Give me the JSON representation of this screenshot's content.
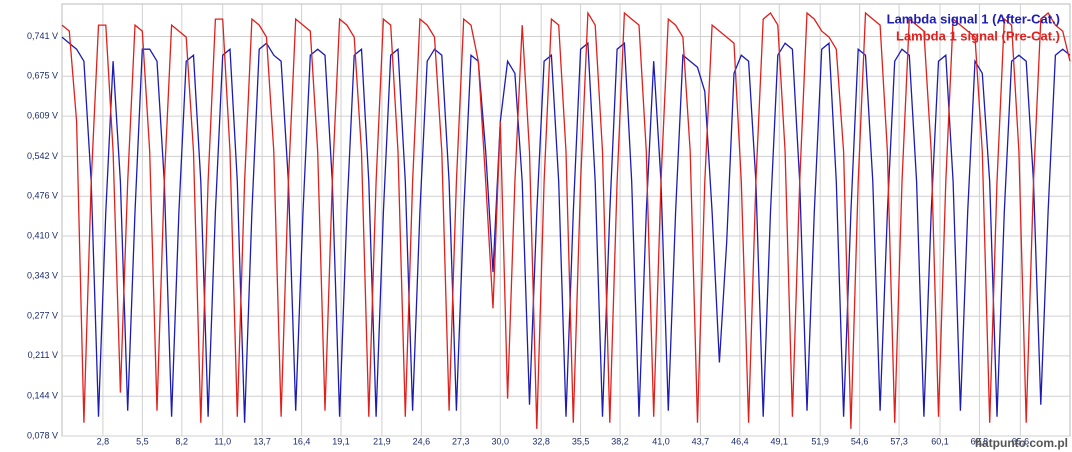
{
  "chart_data": {
    "type": "line",
    "watermark": "fiatpunto.com.pl",
    "x": [
      0,
      0.5,
      1,
      1.5,
      2,
      2.5,
      3,
      3.5,
      4,
      4.5,
      5,
      5.5,
      6,
      6.5,
      7,
      7.5,
      8,
      8.5,
      9,
      9.5,
      10,
      10.5,
      11,
      11.5,
      12,
      12.5,
      13,
      13.5,
      14,
      14.5,
      15,
      15.5,
      16,
      16.5,
      17,
      17.5,
      18,
      18.5,
      19,
      19.5,
      20,
      20.5,
      21,
      21.5,
      22,
      22.5,
      23,
      23.5,
      24,
      24.5,
      25,
      25.5,
      26,
      26.5,
      27,
      27.5,
      28,
      28.5,
      29,
      29.5,
      30,
      30.5,
      31,
      31.5,
      32,
      32.5,
      33,
      33.5,
      34,
      34.5,
      35,
      35.5,
      36,
      36.5,
      37,
      37.5,
      38,
      38.5,
      39,
      39.5,
      40,
      40.5,
      41,
      41.5,
      42,
      42.5,
      43,
      43.5,
      44,
      44.5,
      45,
      45.5,
      46,
      46.5,
      47,
      47.5,
      48,
      48.5,
      49,
      49.5,
      50,
      50.5,
      51,
      51.5,
      52,
      52.5,
      53,
      53.5,
      54,
      54.5,
      55,
      55.5,
      56,
      56.5,
      57,
      57.5,
      58,
      58.5,
      59,
      59.5,
      60,
      60.5,
      61,
      61.5,
      62,
      62.5,
      63,
      63.5,
      64,
      64.5,
      65,
      65.5,
      66,
      66.5,
      67,
      67.5,
      68,
      68.5,
      69
    ],
    "series": [
      {
        "name": "Lambda signal 1 (After-Cat.)",
        "color": "#1c1cb4",
        "values": [
          0.74,
          0.73,
          0.72,
          0.7,
          0.5,
          0.11,
          0.45,
          0.7,
          0.5,
          0.12,
          0.45,
          0.72,
          0.72,
          0.7,
          0.5,
          0.11,
          0.45,
          0.7,
          0.71,
          0.5,
          0.11,
          0.45,
          0.71,
          0.72,
          0.5,
          0.1,
          0.45,
          0.72,
          0.73,
          0.71,
          0.7,
          0.5,
          0.12,
          0.45,
          0.71,
          0.72,
          0.71,
          0.5,
          0.11,
          0.45,
          0.71,
          0.72,
          0.5,
          0.11,
          0.45,
          0.71,
          0.72,
          0.5,
          0.12,
          0.45,
          0.7,
          0.72,
          0.71,
          0.5,
          0.12,
          0.45,
          0.71,
          0.7,
          0.55,
          0.35,
          0.6,
          0.7,
          0.68,
          0.5,
          0.13,
          0.45,
          0.7,
          0.71,
          0.5,
          0.11,
          0.45,
          0.72,
          0.73,
          0.5,
          0.11,
          0.45,
          0.72,
          0.73,
          0.5,
          0.11,
          0.45,
          0.7,
          0.5,
          0.12,
          0.45,
          0.71,
          0.7,
          0.69,
          0.65,
          0.45,
          0.2,
          0.4,
          0.68,
          0.71,
          0.7,
          0.5,
          0.11,
          0.45,
          0.71,
          0.73,
          0.72,
          0.5,
          0.12,
          0.45,
          0.72,
          0.73,
          0.5,
          0.11,
          0.45,
          0.72,
          0.71,
          0.5,
          0.12,
          0.45,
          0.7,
          0.72,
          0.71,
          0.5,
          0.11,
          0.45,
          0.7,
          0.71,
          0.5,
          0.12,
          0.45,
          0.7,
          0.68,
          0.5,
          0.11,
          0.45,
          0.7,
          0.71,
          0.7,
          0.5,
          0.13,
          0.45,
          0.71,
          0.72,
          0.71
        ]
      },
      {
        "name": "Lambda 1 signal (Pre-Cat.)",
        "color": "#e0201c",
        "values": [
          0.76,
          0.75,
          0.6,
          0.1,
          0.5,
          0.76,
          0.76,
          0.55,
          0.15,
          0.5,
          0.76,
          0.75,
          0.55,
          0.12,
          0.5,
          0.76,
          0.75,
          0.74,
          0.55,
          0.1,
          0.5,
          0.77,
          0.77,
          0.55,
          0.11,
          0.5,
          0.77,
          0.76,
          0.74,
          0.55,
          0.11,
          0.5,
          0.77,
          0.76,
          0.75,
          0.55,
          0.12,
          0.5,
          0.77,
          0.76,
          0.74,
          0.55,
          0.11,
          0.5,
          0.77,
          0.76,
          0.55,
          0.11,
          0.5,
          0.77,
          0.76,
          0.74,
          0.55,
          0.12,
          0.5,
          0.77,
          0.76,
          0.7,
          0.5,
          0.29,
          0.6,
          0.14,
          0.5,
          0.76,
          0.55,
          0.09,
          0.5,
          0.77,
          0.76,
          0.55,
          0.1,
          0.5,
          0.78,
          0.76,
          0.55,
          0.1,
          0.5,
          0.78,
          0.77,
          0.76,
          0.55,
          0.11,
          0.5,
          0.77,
          0.76,
          0.74,
          0.55,
          0.1,
          0.5,
          0.76,
          0.75,
          0.74,
          0.73,
          0.5,
          0.1,
          0.5,
          0.77,
          0.78,
          0.76,
          0.55,
          0.11,
          0.5,
          0.78,
          0.77,
          0.75,
          0.74,
          0.72,
          0.55,
          0.09,
          0.5,
          0.78,
          0.77,
          0.76,
          0.55,
          0.1,
          0.5,
          0.77,
          0.76,
          0.75,
          0.55,
          0.11,
          0.5,
          0.77,
          0.76,
          0.75,
          0.74,
          0.55,
          0.1,
          0.5,
          0.77,
          0.76,
          0.55,
          0.1,
          0.5,
          0.77,
          0.78,
          0.76,
          0.75,
          0.7
        ]
      }
    ],
    "xlim": [
      0,
      69
    ],
    "xticks": [
      {
        "value": 2.8,
        "label": "2,8"
      },
      {
        "value": 5.5,
        "label": "5,5"
      },
      {
        "value": 8.2,
        "label": "8,2"
      },
      {
        "value": 11.0,
        "label": "11,0"
      },
      {
        "value": 13.7,
        "label": "13,7"
      },
      {
        "value": 16.4,
        "label": "16,4"
      },
      {
        "value": 19.1,
        "label": "19,1"
      },
      {
        "value": 21.9,
        "label": "21,9"
      },
      {
        "value": 24.6,
        "label": "24,6"
      },
      {
        "value": 27.3,
        "label": "27,3"
      },
      {
        "value": 30.0,
        "label": "30,0"
      },
      {
        "value": 32.8,
        "label": "32,8"
      },
      {
        "value": 35.5,
        "label": "35,5"
      },
      {
        "value": 38.2,
        "label": "38,2"
      },
      {
        "value": 41.0,
        "label": "41,0"
      },
      {
        "value": 43.7,
        "label": "43,7"
      },
      {
        "value": 46.4,
        "label": "46,4"
      },
      {
        "value": 49.1,
        "label": "49,1"
      },
      {
        "value": 51.9,
        "label": "51,9"
      },
      {
        "value": 54.6,
        "label": "54,6"
      },
      {
        "value": 57.3,
        "label": "57,3"
      },
      {
        "value": 60.1,
        "label": "60,1"
      },
      {
        "value": 62.8,
        "label": "62,8"
      },
      {
        "value": 65.6,
        "label": "65,6"
      }
    ],
    "ylim": [
      0.078,
      0.795
    ],
    "yticks": [
      {
        "value": 0.078,
        "label": "0,078 V"
      },
      {
        "value": 0.144,
        "label": "0,144 V"
      },
      {
        "value": 0.211,
        "label": "0,211 V"
      },
      {
        "value": 0.277,
        "label": "0,277 V"
      },
      {
        "value": 0.343,
        "label": "0,343 V"
      },
      {
        "value": 0.41,
        "label": "0,410 V"
      },
      {
        "value": 0.476,
        "label": "0,476 V"
      },
      {
        "value": 0.542,
        "label": "0,542 V"
      },
      {
        "value": 0.609,
        "label": "0,609 V"
      },
      {
        "value": 0.675,
        "label": "0,675 V"
      },
      {
        "value": 0.741,
        "label": "0,741 V"
      }
    ],
    "grid": true,
    "legend": "top-right"
  }
}
